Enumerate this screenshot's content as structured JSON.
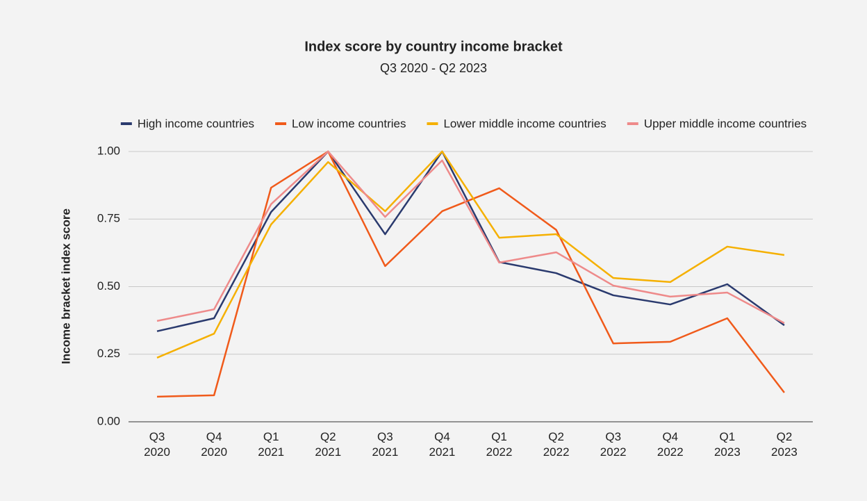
{
  "chart_data": {
    "type": "line",
    "title": "Index score by country income bracket",
    "subtitle": "Q3 2020 - Q2 2023",
    "y_label": "Income bracket index score",
    "categories": [
      "Q3 2020",
      "Q4 2020",
      "Q1 2021",
      "Q2 2021",
      "Q3 2021",
      "Q4 2021",
      "Q1 2022",
      "Q2 2022",
      "Q3 2022",
      "Q4 2022",
      "Q1 2023",
      "Q2 2023"
    ],
    "series": [
      {
        "name": "High income countries",
        "color": "#2a3a6e",
        "values": [
          0.335,
          0.383,
          0.776,
          1.0,
          0.694,
          1.0,
          0.591,
          0.55,
          0.468,
          0.434,
          0.509,
          0.357
        ]
      },
      {
        "name": "Low income countries",
        "color": "#f05a1a",
        "values": [
          0.093,
          0.098,
          0.866,
          1.0,
          0.576,
          0.779,
          0.864,
          0.71,
          0.29,
          0.296,
          0.383,
          0.108
        ]
      },
      {
        "name": "Lower middle income countries",
        "color": "#f5b000",
        "values": [
          0.237,
          0.326,
          0.73,
          0.961,
          0.779,
          1.0,
          0.681,
          0.694,
          0.532,
          0.517,
          0.648,
          0.617
        ]
      },
      {
        "name": "Upper middle income countries",
        "color": "#ee8a8a",
        "values": [
          0.373,
          0.416,
          0.805,
          1.0,
          0.758,
          0.967,
          0.589,
          0.627,
          0.504,
          0.463,
          0.478,
          0.365
        ]
      }
    ],
    "ylim": [
      0,
      1
    ],
    "yticks": [
      {
        "value": 0,
        "label": "0.00"
      },
      {
        "value": 0.25,
        "label": "0.25"
      },
      {
        "value": 0.5,
        "label": "0.50"
      },
      {
        "value": 0.75,
        "label": "0.75"
      },
      {
        "value": 1,
        "label": "1.00"
      }
    ],
    "grid": true,
    "legend": "top"
  }
}
